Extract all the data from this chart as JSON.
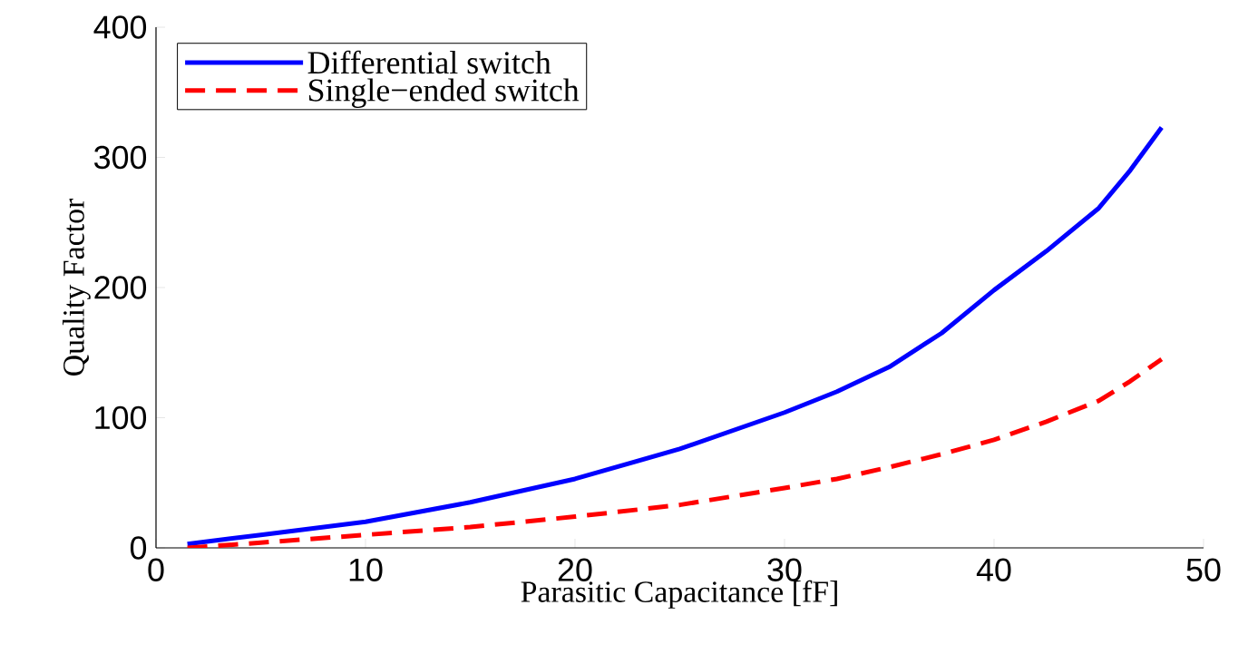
{
  "chart_data": {
    "type": "line",
    "xlabel": "Parasitic Capacitance [fF]",
    "ylabel": "Quality Factor",
    "xlim": [
      0,
      50
    ],
    "ylim": [
      0,
      400
    ],
    "xticks": [
      0,
      10,
      20,
      30,
      40,
      50
    ],
    "yticks": [
      0,
      100,
      200,
      300,
      400
    ],
    "legend": "top left",
    "grid": false,
    "series": [
      {
        "name": "Differential switch",
        "color": "#0000ff",
        "line_style": "solid",
        "x": [
          1.5,
          5,
          10,
          15,
          20,
          25,
          30,
          32.5,
          35,
          37.5,
          40,
          42.5,
          45,
          46.5,
          48
        ],
        "values": [
          3,
          10,
          20,
          35,
          53,
          76,
          104,
          120,
          139,
          165,
          198,
          228,
          261,
          290,
          323
        ]
      },
      {
        "name": "Single−ended switch",
        "color": "#ff0000",
        "line_style": "dashed",
        "x": [
          1.5,
          5,
          10,
          15,
          20,
          25,
          30,
          32.5,
          35,
          37.5,
          40,
          42.5,
          45,
          46.5,
          48
        ],
        "values": [
          0,
          4,
          10,
          16,
          24,
          33,
          46,
          53,
          62,
          72,
          83,
          97,
          113,
          128,
          145
        ]
      }
    ]
  }
}
